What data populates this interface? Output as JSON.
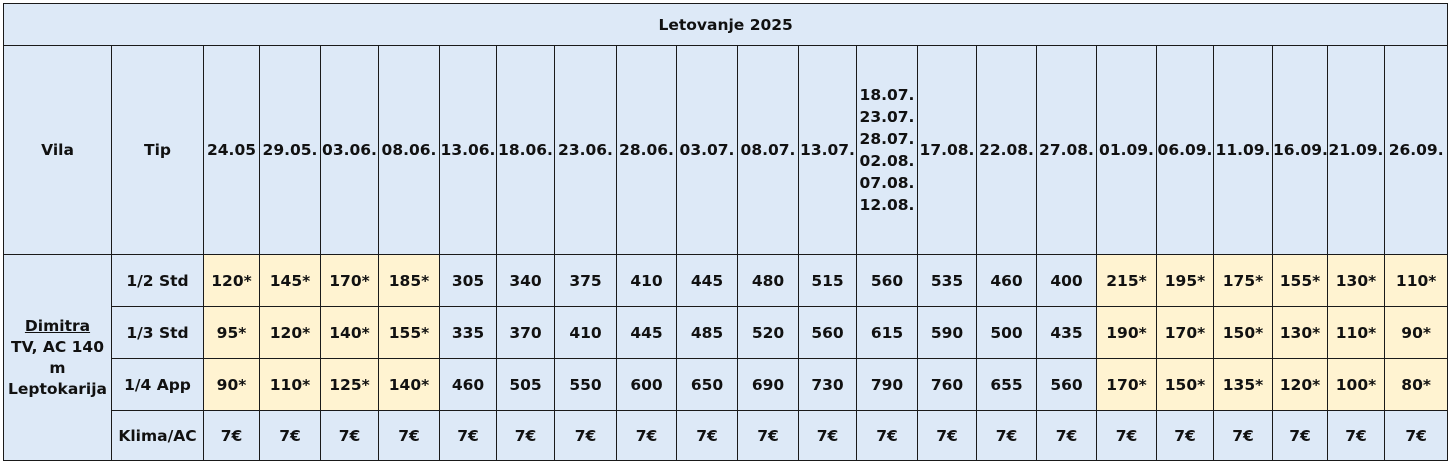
{
  "title": "Letovanje 2025",
  "headers": {
    "vila": "Vila",
    "tip": "Tip",
    "dates": [
      "24.05",
      "29.05.",
      "03.06.",
      "08.06.",
      "13.06.",
      "18.06.",
      "23.06.",
      "28.06.",
      "03.07.",
      "08.07.",
      "13.07.",
      "18.07.\n23.07.\n28.07.\n02.08.\n07.08.\n12.08.",
      "17.08.",
      "22.08.",
      "27.08.",
      "01.09.",
      "06.09.",
      "11.09.",
      "16.09.",
      "21.09.",
      "26.09."
    ]
  },
  "vila": {
    "name": "Dimitra",
    "line2": "TV, AC 140",
    "line3": "m",
    "line4": "Leptokarija"
  },
  "rows": [
    {
      "tip": "1/2 Std",
      "values": [
        "120*",
        "145*",
        "170*",
        "185*",
        "305",
        "340",
        "375",
        "410",
        "445",
        "480",
        "515",
        "560",
        "535",
        "460",
        "400",
        "215*",
        "195*",
        "175*",
        "155*",
        "130*",
        "110*"
      ]
    },
    {
      "tip": "1/3 Std",
      "values": [
        "95*",
        "120*",
        "140*",
        "155*",
        "335",
        "370",
        "410",
        "445",
        "485",
        "520",
        "560",
        "615",
        "590",
        "500",
        "435",
        "190*",
        "170*",
        "150*",
        "130*",
        "110*",
        "90*"
      ]
    },
    {
      "tip": "1/4 App",
      "values": [
        "90*",
        "110*",
        "125*",
        "140*",
        "460",
        "505",
        "550",
        "600",
        "650",
        "690",
        "730",
        "790",
        "760",
        "655",
        "560",
        "170*",
        "150*",
        "135*",
        "120*",
        "100*",
        "80*"
      ]
    },
    {
      "tip": "Klima/AC",
      "values": [
        "7€",
        "7€",
        "7€",
        "7€",
        "7€",
        "7€",
        "7€",
        "7€",
        "7€",
        "7€",
        "7€",
        "7€",
        "7€",
        "7€",
        "7€",
        "7€",
        "7€",
        "7€",
        "7€",
        "7€",
        "7€"
      ]
    }
  ],
  "colors": {
    "header_bg": "#dde9f7",
    "highlight_bg": "#fff3d1",
    "border": "#1a1a1a"
  }
}
